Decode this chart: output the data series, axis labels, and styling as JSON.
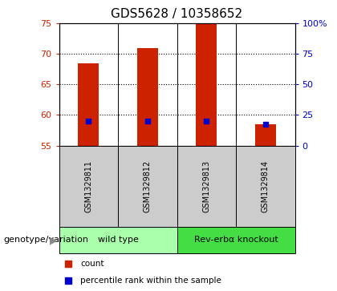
{
  "title": "GDS5628 / 10358652",
  "samples": [
    "GSM1329811",
    "GSM1329812",
    "GSM1329813",
    "GSM1329814"
  ],
  "bar_bottom": 55,
  "red_tops": [
    68.5,
    71.0,
    75.0,
    58.5
  ],
  "blue_values": [
    59.0,
    59.0,
    59.0,
    58.5
  ],
  "ylim_left": [
    55,
    75
  ],
  "ylim_right": [
    0,
    100
  ],
  "yticks_left": [
    55,
    60,
    65,
    70,
    75
  ],
  "yticks_right": [
    0,
    25,
    50,
    75,
    100
  ],
  "ytick_labels_right": [
    "0",
    "25",
    "50",
    "75",
    "100%"
  ],
  "bar_color": "#cc2200",
  "blue_color": "#0000cc",
  "groups": [
    {
      "label": "wild type",
      "samples": [
        0,
        1
      ],
      "color": "#aaffaa"
    },
    {
      "label": "Rev-erbα knockout",
      "samples": [
        2,
        3
      ],
      "color": "#44dd44"
    }
  ],
  "group_label": "genotype/variation",
  "legend": [
    {
      "color": "#cc2200",
      "label": "count"
    },
    {
      "color": "#0000cc",
      "label": "percentile rank within the sample"
    }
  ],
  "sample_box_color": "#cccccc",
  "title_fontsize": 11,
  "tick_fontsize": 8,
  "bar_width": 0.35
}
